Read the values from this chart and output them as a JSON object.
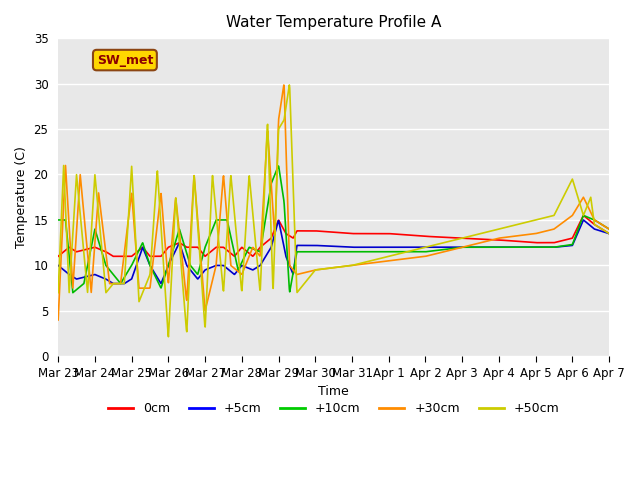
{
  "title": "Water Temperature Profile A",
  "xlabel": "Time",
  "ylabel": "Temperature (C)",
  "ylim": [
    0,
    35
  ],
  "annotation": "SW_met",
  "annotation_color": "#8B0000",
  "annotation_bg": "#FFD700",
  "legend_labels": [
    "0cm",
    "+5cm",
    "+10cm",
    "+30cm",
    "+50cm"
  ],
  "legend_colors": [
    "#FF0000",
    "#0000FF",
    "#00CC00",
    "#FF8C00",
    "#CCCC00"
  ],
  "line_colors": {
    "0cm": "#FF0000",
    "+5cm": "#0000CD",
    "+10cm": "#00BB00",
    "+30cm": "#FF8C00",
    "+50cm": "#CCCC00"
  },
  "background_color": "#E8E8E8",
  "grid_color": "#FFFFFF",
  "tick_dates": [
    "Mar 23",
    "Mar 24",
    "Mar 25",
    "Mar 26",
    "Mar 27",
    "Mar 28",
    "Mar 29",
    "Mar 30",
    "Mar 31",
    "Apr 1",
    "Apr 2",
    "Apr 3",
    "Apr 4",
    "Apr 5",
    "Apr 6",
    "Apr 7"
  ]
}
